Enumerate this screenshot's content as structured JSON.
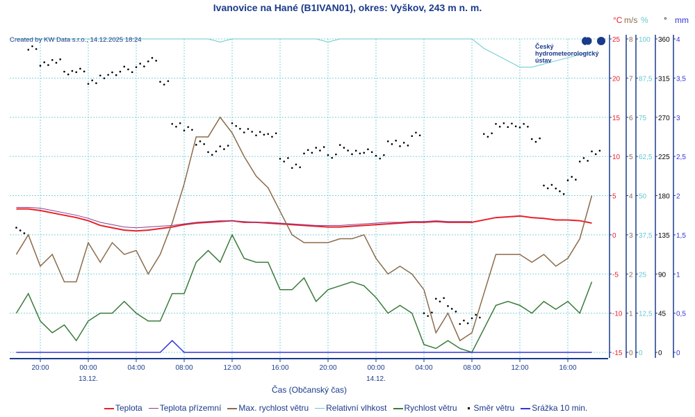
{
  "title": "Ivanovice na Hané (B1IVAN01), okres: Vyškov, 243 m n. m.",
  "credit": "Created by KW Data s.r.o., 14.12.2025 18:24",
  "logo": {
    "line1": "Český",
    "line2": "hydrometeorologický",
    "line3": "ústav"
  },
  "units": {
    "temp": "°C",
    "wind": "m/s",
    "humidity": "%",
    "direction": "°",
    "precip": "mm"
  },
  "colors": {
    "temp": "#e8202a",
    "ground": "#8b3a8b",
    "maxwind": "#8b6a4a",
    "humidity": "#66c8d0",
    "wind": "#3a7a3a",
    "direction": "#000000",
    "precip": "#3333dd",
    "axis": "#1a3a8a",
    "grid": "#7fd0d8"
  },
  "chart_data": {
    "type": "line",
    "title": "Ivanovice na Hané (B1IVAN01), okres: Vyškov, 243 m n. m.",
    "xlabel": "Čas (Občanský čas)",
    "start_hour": 18,
    "step_hours": 1,
    "x_ticks": [
      "20:00",
      "00:00",
      "04:00",
      "08:00",
      "12:00",
      "16:00",
      "20:00",
      "00:00",
      "04:00",
      "08:00",
      "12:00",
      "16:00"
    ],
    "x_tick_hours": [
      2,
      6,
      10,
      14,
      18,
      22,
      26,
      30,
      34,
      38,
      42,
      46
    ],
    "date_labels": [
      {
        "hour": 6,
        "label": "13.12."
      },
      {
        "hour": 30,
        "label": "14.12."
      }
    ],
    "axes": [
      {
        "key": "temp",
        "ticks": [
          "25",
          "20",
          "15",
          "10",
          "5",
          "0",
          "-5",
          "-10",
          "-15"
        ],
        "range": [
          -15,
          25
        ]
      },
      {
        "key": "wind",
        "ticks": [
          "8",
          "7",
          "6",
          "5",
          "4",
          "3",
          "2",
          "1",
          "0"
        ],
        "range": [
          0,
          8
        ]
      },
      {
        "key": "humidity",
        "ticks": [
          "100",
          "87,5",
          "75",
          "62,5",
          "50",
          "37,5",
          "25",
          "12,5",
          "0"
        ],
        "range": [
          0,
          100
        ]
      },
      {
        "key": "direction",
        "ticks": [
          "360",
          "315",
          "270",
          "225",
          "180",
          "135",
          "90",
          "45",
          "0"
        ],
        "range": [
          0,
          360
        ]
      },
      {
        "key": "precip",
        "ticks": [
          "4",
          "3,5",
          "3",
          "2,5",
          "2",
          "1,5",
          "1",
          "0,5",
          "0"
        ],
        "range": [
          0,
          4
        ]
      }
    ],
    "series": [
      {
        "name": "Teplota",
        "axis": "temp",
        "color": "#e8202a",
        "values": [
          3.3,
          3.3,
          3.1,
          2.8,
          2.5,
          2.2,
          1.8,
          1.2,
          0.9,
          0.6,
          0.5,
          0.6,
          0.8,
          1.0,
          1.3,
          1.5,
          1.6,
          1.7,
          1.8,
          1.6,
          1.6,
          1.5,
          1.4,
          1.3,
          1.2,
          1.1,
          1.0,
          1.0,
          1.1,
          1.2,
          1.3,
          1.4,
          1.5,
          1.6,
          1.6,
          1.7,
          1.6,
          1.6,
          1.6,
          1.9,
          2.2,
          2.3,
          2.4,
          2.2,
          2.1,
          1.9,
          1.9,
          1.8,
          1.5
        ]
      },
      {
        "name": "Teplota přízemní",
        "axis": "temp",
        "color": "#8b3a8b",
        "values": [
          3.5,
          3.5,
          3.4,
          3.1,
          2.8,
          2.5,
          2.1,
          1.6,
          1.3,
          1.0,
          0.9,
          1.0,
          1.1,
          1.2,
          1.4,
          1.6,
          1.7,
          1.8,
          1.8,
          1.7,
          1.6,
          1.6,
          1.5,
          1.4,
          1.3,
          1.2,
          1.2,
          1.2,
          1.3,
          1.4,
          1.5,
          1.6,
          1.6,
          1.7,
          1.7,
          1.8,
          1.7,
          1.7,
          1.7
        ]
      },
      {
        "name": "Max. rychlost větru",
        "axis": "wind",
        "color": "#8b6a4a",
        "values": [
          2.5,
          3.0,
          2.2,
          2.5,
          1.8,
          1.8,
          2.8,
          2.3,
          2.8,
          2.5,
          2.6,
          2.0,
          2.5,
          3.3,
          4.3,
          5.5,
          5.5,
          6.0,
          5.6,
          5.0,
          4.5,
          4.2,
          3.6,
          3.0,
          2.8,
          2.8,
          2.8,
          2.9,
          2.9,
          3.0,
          2.4,
          2.0,
          2.2,
          2.0,
          1.6,
          0.5,
          1.0,
          0.3,
          0.5,
          1.5,
          2.5,
          2.5,
          2.5,
          2.3,
          2.5,
          2.2,
          2.4,
          2.9,
          4.0
        ]
      },
      {
        "name": "Relativní vlhkost",
        "axis": "humidity",
        "color": "#66c8d0",
        "values": [
          100,
          100,
          100,
          100,
          100,
          100,
          100,
          100,
          100,
          100,
          100,
          100,
          100,
          100,
          100,
          100,
          100,
          99,
          100,
          100,
          100,
          100,
          100,
          100,
          100,
          100,
          99,
          100,
          100,
          100,
          100,
          100,
          100,
          100,
          100,
          100,
          100,
          100,
          100,
          97,
          95,
          93,
          91,
          91,
          92,
          93,
          94,
          95,
          96
        ]
      },
      {
        "name": "Rychlost větru",
        "axis": "wind",
        "color": "#3a7a3a",
        "values": [
          1.0,
          1.5,
          0.8,
          0.5,
          0.7,
          0.3,
          0.8,
          1.0,
          1.0,
          1.3,
          1.0,
          0.8,
          0.8,
          1.5,
          1.5,
          2.3,
          2.6,
          2.3,
          3.0,
          2.4,
          2.3,
          2.3,
          1.6,
          1.6,
          1.9,
          1.3,
          1.6,
          1.7,
          1.8,
          1.7,
          1.4,
          1.0,
          1.2,
          1.0,
          0.2,
          0.1,
          0.3,
          0.1,
          0.0,
          0.6,
          1.2,
          1.3,
          1.2,
          1.0,
          1.3,
          1.1,
          1.3,
          1.0,
          1.8
        ]
      },
      {
        "name": "Směr větru",
        "axis": "direction",
        "color": "#000000",
        "type": "scatter",
        "values": [
          140,
          350,
          330,
          335,
          320,
          325,
          310,
          318,
          320,
          325,
          330,
          335,
          310,
          260,
          258,
          240,
          230,
          235,
          260,
          255,
          250,
          250,
          220,
          215,
          230,
          235,
          225,
          235,
          230,
          230,
          225,
          240,
          240,
          250,
          45,
          60,
          50,
          35,
          40,
          250,
          260,
          262,
          260,
          245,
          190,
          185,
          200,
          220,
          230
        ]
      },
      {
        "name": "Srážka 10 min.",
        "axis": "precip",
        "color": "#3333dd",
        "values": [
          0,
          0,
          0,
          0,
          0,
          0,
          0,
          0,
          0,
          0,
          0,
          0,
          0,
          0.15,
          0,
          0,
          0,
          0,
          0,
          0,
          0,
          0,
          0,
          0,
          0,
          0,
          0,
          0,
          0,
          0,
          0,
          0,
          0,
          0,
          0,
          0,
          0,
          0,
          0,
          0,
          0,
          0,
          0,
          0,
          0,
          0,
          0,
          0,
          0
        ]
      }
    ]
  },
  "legend": [
    "Teplota",
    "Teplota přízemní",
    "Max. rychlost větru",
    "Relativní vlhkost",
    "Rychlost větru",
    "Směr větru",
    "Srážka 10 min."
  ]
}
